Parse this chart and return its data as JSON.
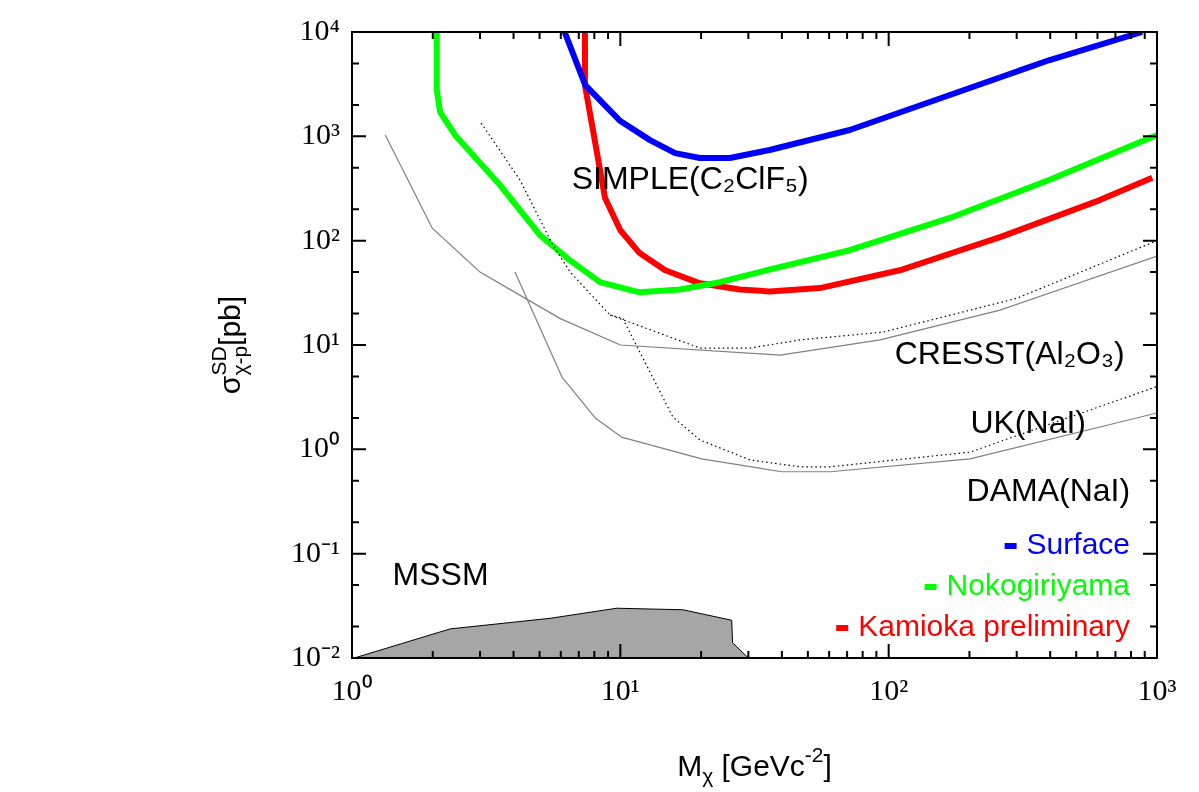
{
  "chart_data": {
    "type": "line",
    "xlabel": "M$_{χ}$ [GeVc$^{-2}$]",
    "ylabel": "σ$^{SD}$$_{χ-p}$[pb]",
    "log": "xy",
    "grid": false,
    "legend": "bottom right",
    "xlim": [
      1,
      1000
    ],
    "ylim": [
      0.01,
      10000
    ],
    "xticks": [
      {
        "value": 1,
        "label": "10⁰"
      },
      {
        "value": 2,
        "label": null
      },
      {
        "value": 3,
        "label": null
      },
      {
        "value": 4,
        "label": null
      },
      {
        "value": 5,
        "label": null
      },
      {
        "value": 6,
        "label": null
      },
      {
        "value": 7,
        "label": null
      },
      {
        "value": 8,
        "label": null
      },
      {
        "value": 9,
        "label": null
      },
      {
        "value": 10,
        "label": "10¹"
      },
      {
        "value": 20,
        "label": null
      },
      {
        "value": 30,
        "label": null
      },
      {
        "value": 40,
        "label": null
      },
      {
        "value": 50,
        "label": null
      },
      {
        "value": 60,
        "label": null
      },
      {
        "value": 70,
        "label": null
      },
      {
        "value": 80,
        "label": null
      },
      {
        "value": 90,
        "label": null
      },
      {
        "value": 100,
        "label": "10²"
      },
      {
        "value": 200,
        "label": null
      },
      {
        "value": 300,
        "label": null
      },
      {
        "value": 400,
        "label": null
      },
      {
        "value": 500,
        "label": null
      },
      {
        "value": 600,
        "label": null
      },
      {
        "value": 700,
        "label": null
      },
      {
        "value": 800,
        "label": null
      },
      {
        "value": 900,
        "label": null
      },
      {
        "value": 1000,
        "label": "10³"
      }
    ],
    "yticks": [
      {
        "value": 0.01,
        "label": "10⁻²"
      },
      {
        "value": 0.02,
        "label": null
      },
      {
        "value": 0.05,
        "label": null
      },
      {
        "value": 0.1,
        "label": "10⁻¹"
      },
      {
        "value": 0.2,
        "label": null
      },
      {
        "value": 0.5,
        "label": null
      },
      {
        "value": 1,
        "label": "10⁰"
      },
      {
        "value": 2,
        "label": null
      },
      {
        "value": 5,
        "label": null
      },
      {
        "value": 10,
        "label": "10¹"
      },
      {
        "value": 20,
        "label": null
      },
      {
        "value": 50,
        "label": null
      },
      {
        "value": 100,
        "label": "10²"
      },
      {
        "value": 200,
        "label": null
      },
      {
        "value": 500,
        "label": null
      },
      {
        "value": 1000,
        "label": "10³"
      },
      {
        "value": 2000,
        "label": null
      },
      {
        "value": 5000,
        "label": null
      },
      {
        "value": 10000,
        "label": "10⁴"
      }
    ],
    "series": [
      {
        "type": "area",
        "color": "#000000",
        "x": [
          1.02,
          2.32,
          5.47,
          9.7,
          17.1,
          26,
          26.2,
          30
        ],
        "values": [
          0.01,
          0.019,
          0.024,
          0.03,
          0.029,
          0.023,
          0.014,
          0.01
        ]
      },
      {
        "color": "#000000",
        "line_style": "dotted",
        "x": [
          3.03,
          4.23,
          5.6,
          6.5,
          9.15,
          19.8,
          30.5,
          46.8,
          95.5,
          300,
          1000
        ],
        "values": [
          1340,
          380,
          91,
          50,
          19.4,
          9.35,
          9.35,
          11.2,
          13.3,
          28,
          100
        ]
      },
      {
        "color": "#808080",
        "x": [
          1.33,
          1.99,
          3.0,
          5.95,
          10,
          39.4,
          92.9,
          260,
          1000
        ],
        "values": [
          1030,
          132,
          50,
          18,
          10,
          8,
          11.2,
          21.6,
          71
        ]
      },
      {
        "color": "#000000",
        "line_style": "dotted",
        "x": [
          9.15,
          10.2,
          15.7,
          19.8,
          30.5,
          46.8,
          60.5,
          201,
          1000
        ],
        "values": [
          19.4,
          18,
          2.04,
          1.23,
          0.79,
          0.68,
          0.68,
          0.94,
          4.0
        ]
      },
      {
        "color": "#808080",
        "x": [
          4.05,
          6.06,
          8.06,
          10.1,
          20.1,
          40,
          60.5,
          201,
          1000
        ],
        "values": [
          50,
          4.93,
          2.0,
          1.31,
          0.81,
          0.61,
          0.61,
          0.81,
          2.23
        ]
      },
      {
        "name": "Surface",
        "color": "#0000ff",
        "x": [
          6.2,
          7.4,
          10,
          12.9,
          16,
          19.8,
          25.6,
          36,
          71.6,
          169,
          398,
          880
        ],
        "values": [
          10000,
          3100,
          1400,
          920,
          690,
          620,
          620,
          740,
          1150,
          2490,
          5390,
          10000
        ]
      },
      {
        "name": "Nokogiriyama",
        "color": "#00ff00",
        "x": [
          2.07,
          2.07,
          2.13,
          2.42,
          3.56,
          5.02,
          6.48,
          8.4,
          11.8,
          16.7,
          23.5,
          33,
          71.6,
          169,
          398,
          1000
        ],
        "values": [
          10000,
          2780,
          1710,
          1030,
          341,
          113,
          65,
          40,
          32,
          34,
          40,
          50,
          81,
          165,
          383,
          1030
        ]
      },
      {
        "name": "Kamioka preliminary",
        "color": "#ff0000",
        "x": [
          7.38,
          7.38,
          8.77,
          10,
          11.8,
          14.7,
          19.8,
          27.9,
          36,
          55.4,
          110,
          260,
          612,
          960
        ],
        "values": [
          10000,
          3100,
          256,
          126,
          76,
          52,
          39,
          34,
          32.6,
          35.1,
          52,
          108,
          245,
          400
        ]
      }
    ],
    "annotations": [
      "SIMPLE(C₂ClF₅)",
      "CRESST(Al₂O₃)",
      "UK(NaI)",
      "DAMA(NaI)",
      "MSSM"
    ]
  }
}
